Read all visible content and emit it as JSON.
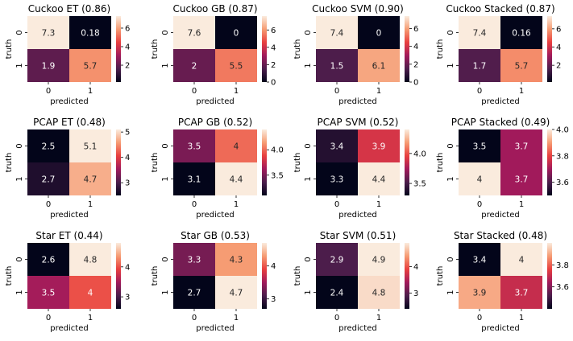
{
  "figure": {
    "xlabel": "predicted",
    "ylabel": "truth",
    "tick_labels": [
      "0",
      "1"
    ],
    "colormap": "rocket",
    "colormap_stops": [
      "#03051a",
      "#4c1d4b",
      "#a11a5b",
      "#e83f3f",
      "#f69c73",
      "#faebdd"
    ]
  },
  "chart_data": [
    {
      "type": "heatmap",
      "title": "Cuckoo ET (0.86)",
      "categories": [
        "0",
        "1"
      ],
      "matrix": [
        [
          7.3,
          0.18
        ],
        [
          1.9,
          5.7
        ]
      ],
      "labels": [
        [
          "7.3",
          "0.18"
        ],
        [
          "1.9",
          "5.7"
        ]
      ],
      "colorbar_range": [
        0.18,
        7.3
      ],
      "colorbar_ticks": [
        2,
        4,
        6
      ],
      "xlabel": "predicted",
      "ylabel": "truth"
    },
    {
      "type": "heatmap",
      "title": "Cuckoo GB (0.87)",
      "categories": [
        "0",
        "1"
      ],
      "matrix": [
        [
          7.6,
          0
        ],
        [
          2,
          5.5
        ]
      ],
      "labels": [
        [
          "7.6",
          "0"
        ],
        [
          "2",
          "5.5"
        ]
      ],
      "colorbar_range": [
        0,
        7.6
      ],
      "colorbar_ticks": [
        0,
        2,
        4,
        6
      ],
      "xlabel": "predicted",
      "ylabel": "truth"
    },
    {
      "type": "heatmap",
      "title": "Cuckoo SVM (0.90)",
      "categories": [
        "0",
        "1"
      ],
      "matrix": [
        [
          7.4,
          0
        ],
        [
          1.5,
          6.1
        ]
      ],
      "labels": [
        [
          "7.4",
          "0"
        ],
        [
          "1.5",
          "6.1"
        ]
      ],
      "colorbar_range": [
        0,
        7.4
      ],
      "colorbar_ticks": [
        0,
        2,
        4,
        6
      ],
      "xlabel": "predicted",
      "ylabel": "truth"
    },
    {
      "type": "heatmap",
      "title": "Cuckoo Stacked (0.87)",
      "categories": [
        "0",
        "1"
      ],
      "matrix": [
        [
          7.4,
          0.16
        ],
        [
          1.7,
          5.7
        ]
      ],
      "labels": [
        [
          "7.4",
          "0.16"
        ],
        [
          "1.7",
          "5.7"
        ]
      ],
      "colorbar_range": [
        0.16,
        7.4
      ],
      "colorbar_ticks": [
        2,
        4,
        6
      ],
      "xlabel": "predicted",
      "ylabel": "truth"
    },
    {
      "type": "heatmap",
      "title": "PCAP ET (0.48)",
      "categories": [
        "0",
        "1"
      ],
      "matrix": [
        [
          2.5,
          5.1
        ],
        [
          2.7,
          4.7
        ]
      ],
      "labels": [
        [
          "2.5",
          "5.1"
        ],
        [
          "2.7",
          "4.7"
        ]
      ],
      "colorbar_range": [
        2.5,
        5.1
      ],
      "colorbar_ticks": [
        3,
        4,
        5
      ],
      "xlabel": "predicted",
      "ylabel": "truth"
    },
    {
      "type": "heatmap",
      "title": "PCAP GB (0.52)",
      "categories": [
        "0",
        "1"
      ],
      "matrix": [
        [
          3.5,
          4
        ],
        [
          3.1,
          4.4
        ]
      ],
      "labels": [
        [
          "3.5",
          "4"
        ],
        [
          "3.1",
          "4.4"
        ]
      ],
      "colorbar_range": [
        3.1,
        4.4
      ],
      "colorbar_ticks": [
        3.5,
        4.0
      ],
      "colorbar_tick_labels": [
        "3.5",
        "4.0"
      ],
      "xlabel": "predicted",
      "ylabel": "truth"
    },
    {
      "type": "heatmap",
      "title": "PCAP SVM (0.52)",
      "categories": [
        "0",
        "1"
      ],
      "matrix": [
        [
          3.4,
          3.9
        ],
        [
          3.3,
          4.4
        ]
      ],
      "labels": [
        [
          "3.4",
          "3.9"
        ],
        [
          "3.3",
          "4.4"
        ]
      ],
      "colorbar_range": [
        3.3,
        4.4
      ],
      "colorbar_ticks": [
        3.5,
        4.0
      ],
      "colorbar_tick_labels": [
        "3.5",
        "4.0"
      ],
      "xlabel": "predicted",
      "ylabel": "truth"
    },
    {
      "type": "heatmap",
      "title": "PCAP Stacked (0.49)",
      "categories": [
        "0",
        "1"
      ],
      "matrix": [
        [
          3.5,
          3.7
        ],
        [
          4,
          3.7
        ]
      ],
      "labels": [
        [
          "3.5",
          "3.7"
        ],
        [
          "4",
          "3.7"
        ]
      ],
      "colorbar_range": [
        3.5,
        4.0
      ],
      "colorbar_ticks": [
        3.6,
        3.8,
        4.0
      ],
      "colorbar_tick_labels": [
        "3.6",
        "3.8",
        "4.0"
      ],
      "xlabel": "predicted",
      "ylabel": "truth"
    },
    {
      "type": "heatmap",
      "title": "Star ET (0.44)",
      "categories": [
        "0",
        "1"
      ],
      "matrix": [
        [
          2.6,
          4.8
        ],
        [
          3.5,
          4
        ]
      ],
      "labels": [
        [
          "2.6",
          "4.8"
        ],
        [
          "3.5",
          "4"
        ]
      ],
      "colorbar_range": [
        2.6,
        4.8
      ],
      "colorbar_ticks": [
        3,
        4
      ],
      "xlabel": "predicted",
      "ylabel": "truth"
    },
    {
      "type": "heatmap",
      "title": "Star GB (0.53)",
      "categories": [
        "0",
        "1"
      ],
      "matrix": [
        [
          3.3,
          4.3
        ],
        [
          2.7,
          4.7
        ]
      ],
      "labels": [
        [
          "3.3",
          "4.3"
        ],
        [
          "2.7",
          "4.7"
        ]
      ],
      "colorbar_range": [
        2.7,
        4.7
      ],
      "colorbar_ticks": [
        3,
        4
      ],
      "xlabel": "predicted",
      "ylabel": "truth"
    },
    {
      "type": "heatmap",
      "title": "Star SVM (0.51)",
      "categories": [
        "0",
        "1"
      ],
      "matrix": [
        [
          2.9,
          4.9
        ],
        [
          2.4,
          4.8
        ]
      ],
      "labels": [
        [
          "2.9",
          "4.9"
        ],
        [
          "2.4",
          "4.8"
        ]
      ],
      "colorbar_range": [
        2.4,
        4.9
      ],
      "colorbar_ticks": [
        3,
        4
      ],
      "xlabel": "predicted",
      "ylabel": "truth"
    },
    {
      "type": "heatmap",
      "title": "Star Stacked (0.48)",
      "categories": [
        "0",
        "1"
      ],
      "matrix": [
        [
          3.4,
          4
        ],
        [
          3.9,
          3.7
        ]
      ],
      "labels": [
        [
          "3.4",
          "4"
        ],
        [
          "3.9",
          "3.7"
        ]
      ],
      "colorbar_range": [
        3.4,
        4.0
      ],
      "colorbar_ticks": [
        3.6,
        3.8
      ],
      "colorbar_tick_labels": [
        "3.6",
        "3.8"
      ],
      "xlabel": "predicted",
      "ylabel": "truth"
    }
  ]
}
